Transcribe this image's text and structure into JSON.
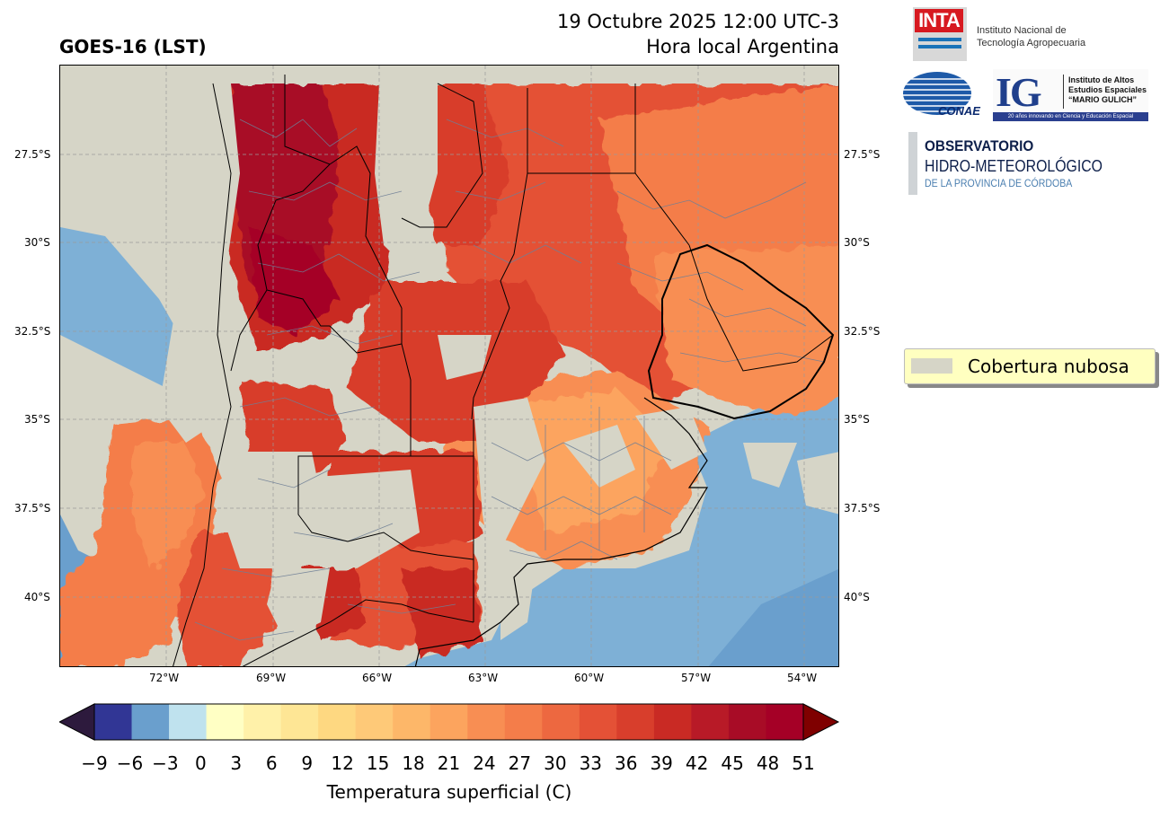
{
  "header": {
    "title": "GOES-16 (LST)",
    "date_line": "19 Octubre 2025 12:00 UTC-3",
    "local_line": "Hora local Argentina"
  },
  "map": {
    "lat_labels": [
      "27.5°S",
      "30°S",
      "32.5°S",
      "35°S",
      "37.5°S",
      "40°S"
    ],
    "lon_labels": [
      "72°W",
      "69°W",
      "66°W",
      "63°W",
      "60°W",
      "57°W",
      "54°W"
    ],
    "cloud_color": "#d6d5c7",
    "grid": "dashed"
  },
  "colorbar": {
    "label": "Temperatura superficial (C)",
    "ticks": [
      "−9",
      "−6",
      "−3",
      "0",
      "3",
      "6",
      "9",
      "12",
      "15",
      "18",
      "21",
      "24",
      "27",
      "30",
      "33",
      "36",
      "39",
      "42",
      "45",
      "48",
      "51"
    ],
    "colors": [
      "#313695",
      "#6a9fcd",
      "#bfe2ee",
      "#ffffc4",
      "#fff1a9",
      "#fee695",
      "#fed881",
      "#fec978",
      "#fdb769",
      "#fca45e",
      "#f88e53",
      "#f47d4a",
      "#ed6840",
      "#e45136",
      "#d83e2c",
      "#c92a24",
      "#b81a27",
      "#a80c26",
      "#a50026"
    ],
    "under_color": "#2d1a3d",
    "over_color": "#7f0000"
  },
  "logos": {
    "inta": {
      "mark": "INTA",
      "name_line1": "Instituto Nacional de",
      "name_line2": "Tecnología Agropecuaria"
    },
    "conae": {
      "mark": "CONAE"
    },
    "ig": {
      "mark": "IG",
      "name_line1": "Instituto de Altos",
      "name_line2": "Estudios Espaciales",
      "name_line3": "“MARIO GULICH”",
      "banner": "20 años innovando en Ciencia y Educación Espacial"
    },
    "observatorio": {
      "line1": "OBSERVATORIO",
      "line2": "HIDRO-METEOROLÓGICO",
      "line3": "DE LA PROVINCIA DE CÓRDOBA"
    }
  },
  "legend": {
    "label": "Cobertura nubosa",
    "swatch_color": "#d6d5c7"
  }
}
